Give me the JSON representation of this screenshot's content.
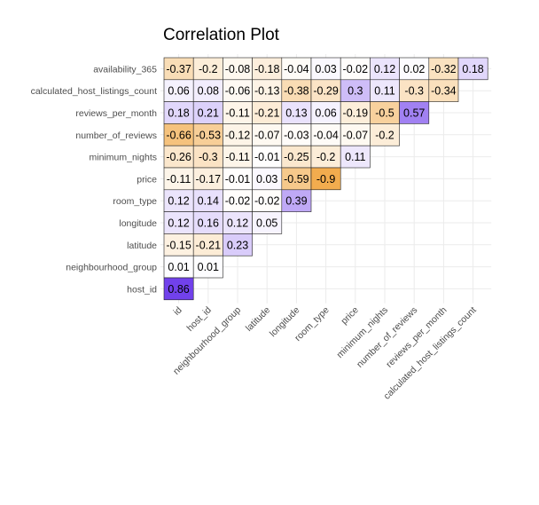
{
  "chart_data": {
    "type": "heatmap",
    "title": "Correlation Plot",
    "xlabel": "",
    "ylabel": "",
    "color_scale": {
      "low": "#F0A33A",
      "mid": "#FFFFFF",
      "high": "#5A22E8",
      "range": [
        -1,
        1
      ]
    },
    "grid": true,
    "rows": [
      "availability_365",
      "calculated_host_listings_count",
      "reviews_per_month",
      "number_of_reviews",
      "minimum_nights",
      "price",
      "room_type",
      "longitude",
      "latitude",
      "neighbourhood_group",
      "host_id"
    ],
    "columns": [
      "id",
      "host_id",
      "neighbourhood_group",
      "latitude",
      "longitude",
      "room_type",
      "price",
      "minimum_nights",
      "number_of_reviews",
      "reviews_per_month",
      "calculated_host_listings_count"
    ],
    "values": [
      [
        -0.37,
        -0.2,
        -0.08,
        -0.18,
        -0.04,
        0.03,
        -0.02,
        0.12,
        0.02,
        -0.32,
        0.18
      ],
      [
        0.06,
        0.08,
        -0.06,
        -0.13,
        -0.38,
        -0.29,
        0.3,
        0.11,
        -0.3,
        -0.34
      ],
      [
        0.18,
        0.21,
        -0.11,
        -0.21,
        0.13,
        0.06,
        -0.19,
        -0.5,
        0.57
      ],
      [
        -0.66,
        -0.53,
        -0.12,
        -0.07,
        -0.03,
        -0.04,
        -0.07,
        -0.2
      ],
      [
        -0.26,
        -0.3,
        -0.11,
        -0.01,
        -0.25,
        -0.2,
        0.11
      ],
      [
        -0.11,
        -0.17,
        -0.01,
        0.03,
        -0.59,
        -0.9
      ],
      [
        0.12,
        0.14,
        -0.02,
        -0.02,
        0.39
      ],
      [
        0.12,
        0.16,
        0.12,
        0.05
      ],
      [
        -0.15,
        -0.21,
        0.23
      ],
      [
        0.01,
        0.01
      ],
      [
        0.86
      ]
    ]
  }
}
